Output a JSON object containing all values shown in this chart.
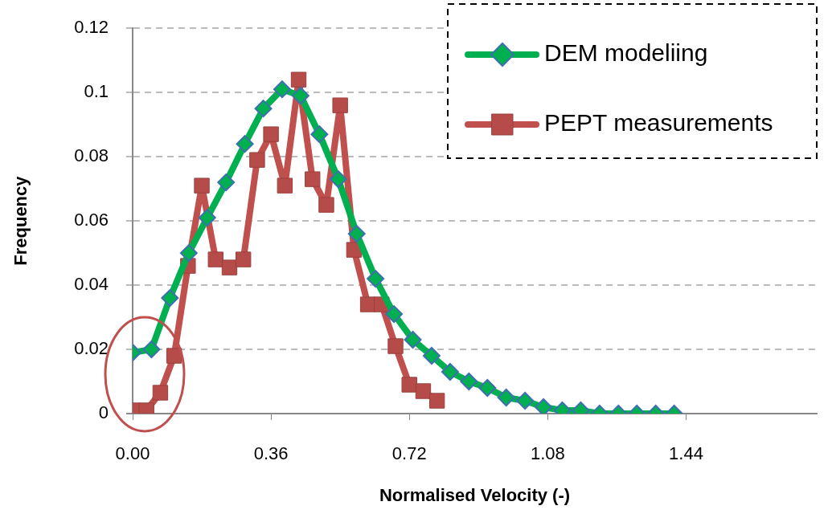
{
  "chart_data": {
    "type": "line",
    "xlabel": "Normalised Velocity (-)",
    "ylabel": "Frequency",
    "xlim": [
      0,
      1.78
    ],
    "xticks": [
      {
        "value": 0,
        "label": "0.00"
      },
      0.36,
      0.72,
      1.08,
      1.44
    ],
    "ylim": [
      0,
      0.12
    ],
    "yticks": [
      0,
      0.02,
      0.04,
      0.06,
      0.08,
      0.1,
      0.12
    ],
    "grid": "y",
    "legend": "top right",
    "line_style": "solid",
    "series": [
      {
        "name": "DEM modeliing",
        "color": "#00b050",
        "marker": "diamond",
        "x": [
          0,
          0.049,
          0.097,
          0.146,
          0.194,
          0.243,
          0.292,
          0.34,
          0.389,
          0.437,
          0.486,
          0.535,
          0.583,
          0.632,
          0.68,
          0.729,
          0.778,
          0.826,
          0.875,
          0.923,
          0.972,
          1.021,
          1.069,
          1.118,
          1.166,
          1.215,
          1.264,
          1.312,
          1.361,
          1.409
        ],
        "values": [
          0.019,
          0.02,
          0.036,
          0.05,
          0.061,
          0.072,
          0.084,
          0.095,
          0.101,
          0.099,
          0.087,
          0.073,
          0.056,
          0.042,
          0.031,
          0.023,
          0.018,
          0.013,
          0.01,
          0.008,
          0.005,
          0.004,
          0.002,
          0.001,
          0.001,
          0,
          0,
          0,
          0,
          0
        ]
      },
      {
        "name": "PEPT measurements",
        "color": "#c0504d",
        "marker": "square",
        "x": [
          0,
          0.036,
          0.072,
          0.108,
          0.144,
          0.18,
          0.216,
          0.252,
          0.288,
          0.324,
          0.36,
          0.396,
          0.432,
          0.468,
          0.504,
          0.54,
          0.576,
          0.612,
          0.648,
          0.684,
          0.72,
          0.756,
          0.792
        ],
        "values": [
          0.001,
          0.001,
          0.0065,
          0.018,
          0.046,
          0.071,
          0.048,
          0.0455,
          0.048,
          0.079,
          0.087,
          0.071,
          0.104,
          0.073,
          0.065,
          0.096,
          0.051,
          0.034,
          0.034,
          0.021,
          0.009,
          0.007,
          0.004
        ]
      }
    ]
  }
}
